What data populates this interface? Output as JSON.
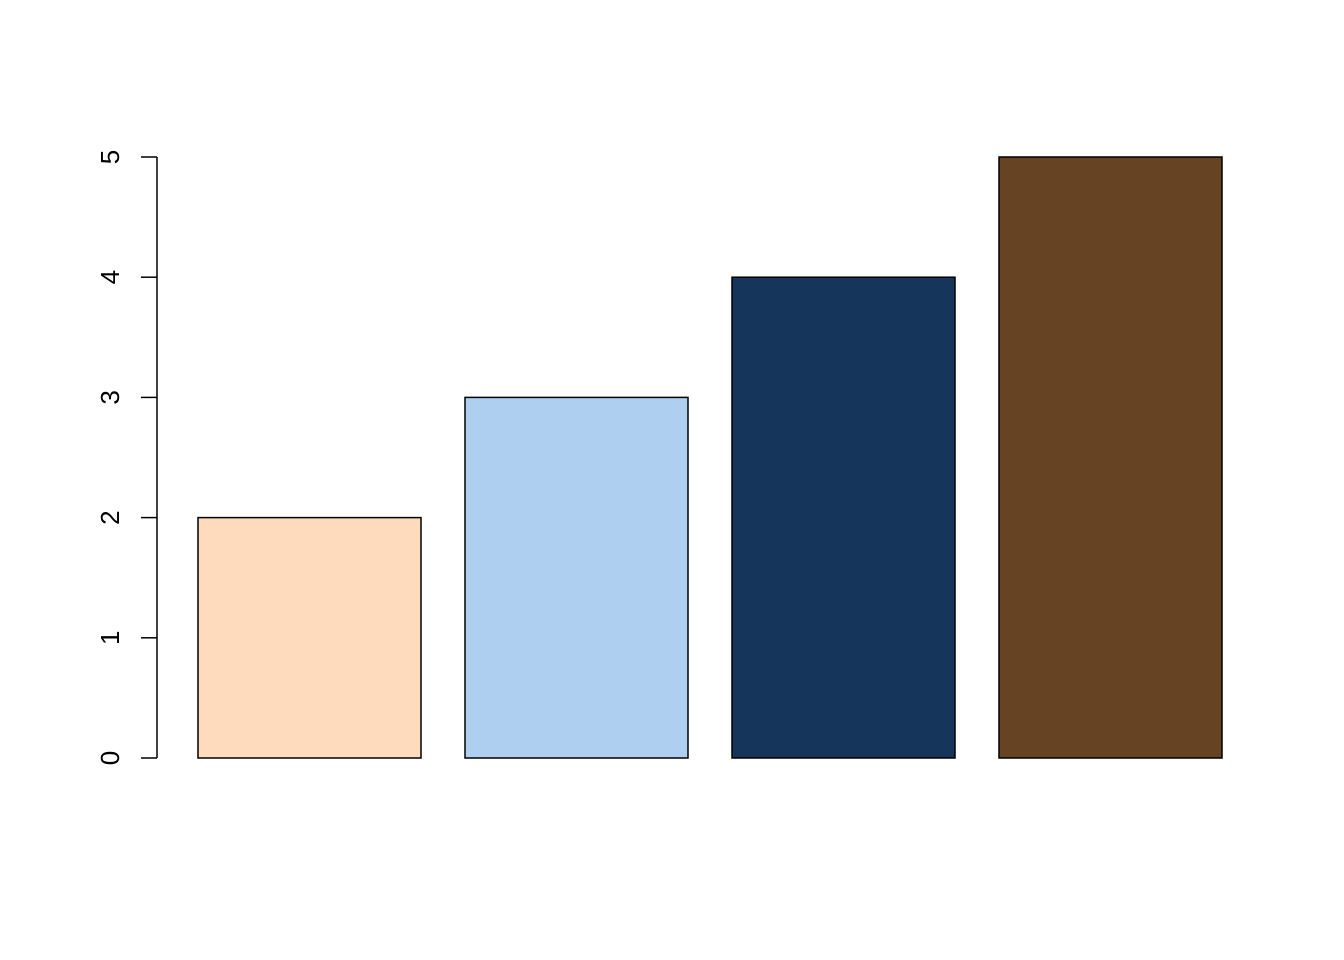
{
  "chart_data": {
    "type": "bar",
    "categories": [
      "",
      "",
      "",
      ""
    ],
    "values": [
      2,
      3,
      4,
      5
    ],
    "colors": [
      "#FDDBBC",
      "#AECFEF",
      "#15365A",
      "#654323"
    ],
    "title": "",
    "xlabel": "",
    "ylabel": "",
    "ylim": [
      0,
      5
    ],
    "yticks": [
      0,
      1,
      2,
      3,
      4,
      5
    ],
    "ytick_labels": [
      "0",
      "1",
      "2",
      "3",
      "4",
      "5"
    ],
    "grid": false,
    "legend": "none"
  }
}
